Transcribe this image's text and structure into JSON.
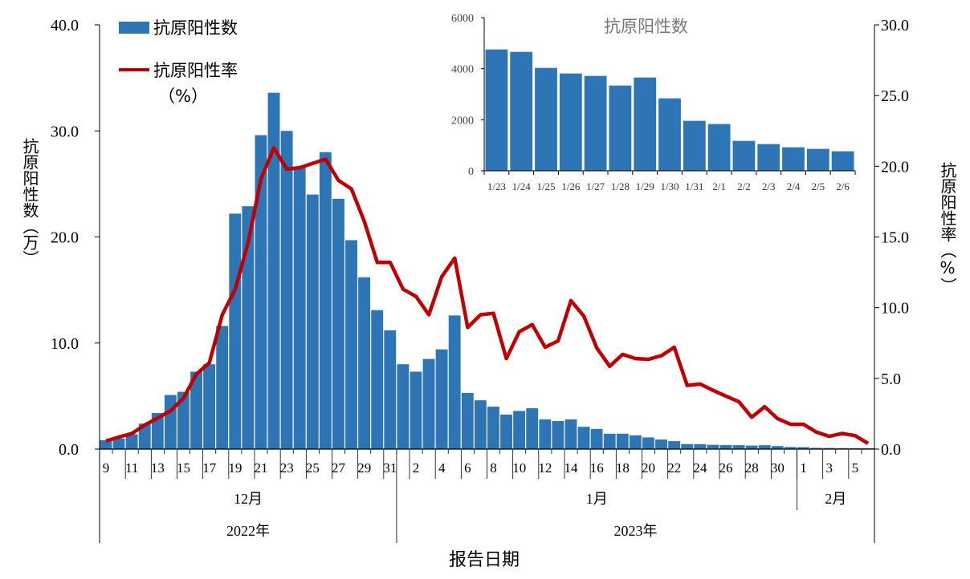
{
  "chart_data": [
    {
      "type": "bar+line",
      "title": "",
      "xlabel": "报告日期",
      "ylabel_left": "抗原阳性数（万）",
      "ylabel_right": "抗原阳性率（%）",
      "ylim_left": [
        0,
        40
      ],
      "ylim_right": [
        0,
        30
      ],
      "yticks_left": [
        "0.0",
        "10.0",
        "20.0",
        "30.0",
        "40.0"
      ],
      "yticks_right": [
        "0.0",
        "5.0",
        "10.0",
        "15.0",
        "20.0",
        "25.0",
        "30.0"
      ],
      "grid": false,
      "legend_position": "top-left",
      "legend": [
        "抗原阳性数",
        "抗原阳性率",
        "（%）"
      ],
      "x_day_labels": [
        "9",
        "",
        "11",
        "",
        "13",
        "",
        "15",
        "",
        "17",
        "",
        "19",
        "",
        "21",
        "",
        "23",
        "",
        "25",
        "",
        "27",
        "",
        "29",
        "",
        "31",
        "",
        "2",
        "",
        "4",
        "",
        "6",
        "",
        "8",
        "",
        "10",
        "",
        "12",
        "",
        "14",
        "",
        "16",
        "",
        "18",
        "",
        "20",
        "",
        "22",
        "",
        "24",
        "",
        "26",
        "",
        "28",
        "",
        "30",
        "",
        "1",
        "",
        "3",
        "",
        "5",
        ""
      ],
      "month_groups": [
        {
          "label": "12月",
          "days": 23
        },
        {
          "label": "1月",
          "days": 31
        },
        {
          "label": "2月",
          "days": 6
        }
      ],
      "year_groups": [
        {
          "label": "2022年",
          "days": 23
        },
        {
          "label": "2023年",
          "days": 37
        }
      ],
      "series": [
        {
          "name": "抗原阳性数",
          "type": "bar",
          "axis": "left",
          "color": "#2E75B6",
          "values": [
            0.83,
            1.0,
            1.4,
            2.4,
            3.4,
            5.1,
            5.4,
            7.3,
            8.0,
            11.6,
            22.2,
            22.9,
            29.6,
            33.6,
            30.0,
            26.5,
            24.0,
            28.0,
            23.6,
            19.7,
            16.2,
            13.1,
            11.2,
            8.0,
            7.3,
            8.5,
            9.4,
            12.6,
            5.3,
            4.6,
            4.0,
            3.25,
            3.6,
            3.85,
            2.8,
            2.65,
            2.8,
            2.1,
            1.9,
            1.45,
            1.45,
            1.3,
            1.1,
            0.9,
            0.75,
            0.475,
            0.466,
            0.403,
            0.381,
            0.372,
            0.334,
            0.365,
            0.284,
            0.196,
            0.183,
            0.117,
            0.105,
            0.092,
            0.086,
            0.076
          ]
        },
        {
          "name": "抗原阳性率（%）",
          "type": "line",
          "axis": "right",
          "color": "#C00000",
          "values": [
            0.57,
            0.85,
            1.1,
            1.7,
            2.2,
            2.7,
            3.6,
            5.3,
            6.1,
            9.5,
            11.3,
            14.6,
            19.1,
            21.3,
            19.8,
            19.9,
            20.2,
            20.5,
            19.0,
            18.4,
            16.1,
            13.2,
            13.2,
            11.3,
            10.8,
            9.5,
            12.2,
            13.5,
            8.6,
            9.5,
            9.6,
            6.4,
            8.3,
            8.8,
            7.2,
            7.65,
            10.5,
            9.4,
            7.15,
            5.85,
            6.7,
            6.4,
            6.35,
            6.6,
            7.2,
            4.5,
            4.6,
            4.15,
            3.75,
            3.35,
            2.25,
            3.0,
            2.15,
            1.75,
            1.75,
            1.2,
            0.9,
            1.1,
            0.95,
            0.4
          ]
        }
      ]
    },
    {
      "type": "bar",
      "title": "抗原阳性数",
      "categories": [
        "1/23",
        "1/24",
        "1/25",
        "1/26",
        "1/27",
        "1/28",
        "1/29",
        "1/30",
        "1/31",
        "2/1",
        "2/2",
        "2/3",
        "2/4",
        "2/5",
        "2/6"
      ],
      "values": [
        4754,
        4660,
        4031,
        3812,
        3717,
        3340,
        3654,
        2838,
        1958,
        1832,
        1173,
        1047,
        921,
        859,
        764
      ],
      "ylim": [
        0,
        6000
      ],
      "yticks": [
        "0",
        "2000",
        "4000",
        "6000"
      ],
      "color": "#2E75B6",
      "grid": false
    }
  ]
}
